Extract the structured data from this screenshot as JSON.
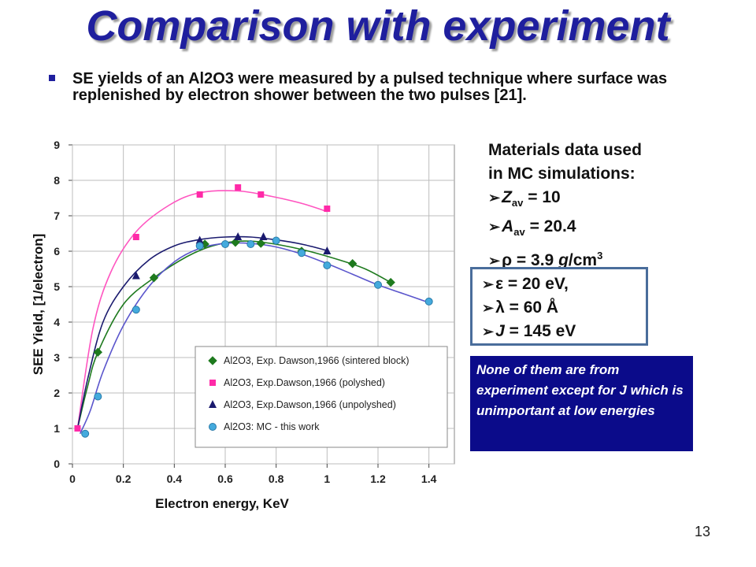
{
  "slide": {
    "title": "Comparison with experiment",
    "bullet": "SE yields of an Al2O3 were measured by a pulsed technique where surface was replenished by electron shower between the two pulses [21].",
    "page_number": "13"
  },
  "materials": {
    "header1": "Materials data used",
    "header2": "in MC simulations:",
    "z_sym": "Z",
    "z_sub": "av",
    "z_val": " = 10",
    "a_sym": "A",
    "a_sub": "av",
    "a_val": " = 20.4",
    "rho_sym": "ρ",
    "rho_val": " = 3.9 ",
    "rho_unit": "g",
    "rho_unit2": "/cm",
    "rho_exp": "3"
  },
  "params": {
    "eps_sym": "ε",
    "eps_val": " = 20 eV,",
    "lam_sym": "λ",
    "lam_val": " = 60 Å",
    "j_sym": "J",
    "j_val": " = 145 eV"
  },
  "note": "None of them are from experiment except for J which is unimportant at low energies",
  "colors": {
    "title": "#1f1f9e",
    "note_bg": "#0b0b8a",
    "box_border": "#4a6d9b",
    "sintered": "#1e7a1e",
    "polyshed": "#ff2aa8",
    "unpolyshed": "#1a1a6e",
    "mc": "#44aadd"
  },
  "chart_data": {
    "type": "scatter",
    "xlabel": "Electron energy, KeV",
    "ylabel": "SEE Yield, [1/electron]",
    "xlim": [
      0,
      1.5
    ],
    "ylim": [
      0,
      9
    ],
    "xticks": [
      "0",
      "0.2",
      "0.4",
      "0.6",
      "0.8",
      "1",
      "1.2",
      "1.4"
    ],
    "yticks": [
      "0",
      "1",
      "2",
      "3",
      "4",
      "5",
      "6",
      "7",
      "8",
      "9"
    ],
    "grid": true,
    "legend_position": "bottom-right",
    "series": [
      {
        "name": "Al2O3, Exp. Dawson,1966 (sintered block)",
        "marker": "diamond",
        "color": "#1e7a1e",
        "points": [
          [
            0.1,
            3.15
          ],
          [
            0.32,
            5.25
          ],
          [
            0.52,
            6.2
          ],
          [
            0.64,
            6.25
          ],
          [
            0.74,
            6.22
          ],
          [
            0.9,
            6.0
          ],
          [
            1.1,
            5.65
          ],
          [
            1.25,
            5.12
          ]
        ],
        "curve": [
          [
            0.02,
            1.0
          ],
          [
            0.06,
            2.2
          ],
          [
            0.1,
            3.15
          ],
          [
            0.2,
            4.5
          ],
          [
            0.32,
            5.25
          ],
          [
            0.45,
            5.85
          ],
          [
            0.55,
            6.15
          ],
          [
            0.65,
            6.28
          ],
          [
            0.75,
            6.25
          ],
          [
            0.9,
            6.05
          ],
          [
            1.05,
            5.75
          ],
          [
            1.15,
            5.5
          ],
          [
            1.25,
            5.12
          ]
        ]
      },
      {
        "name": "Al2O3, Exp.Dawson,1966 (polyshed)",
        "marker": "square",
        "color": "#ff2aa8",
        "points": [
          [
            0.02,
            1.0
          ],
          [
            0.25,
            6.4
          ],
          [
            0.5,
            7.6
          ],
          [
            0.65,
            7.8
          ],
          [
            0.74,
            7.6
          ],
          [
            1.0,
            7.2
          ]
        ],
        "curve": [
          [
            0.02,
            1.0
          ],
          [
            0.08,
            3.8
          ],
          [
            0.15,
            5.4
          ],
          [
            0.25,
            6.55
          ],
          [
            0.38,
            7.3
          ],
          [
            0.5,
            7.65
          ],
          [
            0.65,
            7.7
          ],
          [
            0.78,
            7.55
          ],
          [
            0.9,
            7.35
          ],
          [
            1.0,
            7.12
          ]
        ]
      },
      {
        "name": "Al2O3, Exp.Dawson,1966 (unpolyshed)",
        "marker": "triangle",
        "color": "#1a1a6e",
        "points": [
          [
            0.25,
            5.3
          ],
          [
            0.5,
            6.3
          ],
          [
            0.65,
            6.4
          ],
          [
            0.75,
            6.4
          ],
          [
            1.0,
            6.0
          ]
        ],
        "curve": [
          [
            0.02,
            1.0
          ],
          [
            0.06,
            2.4
          ],
          [
            0.12,
            4.0
          ],
          [
            0.2,
            5.0
          ],
          [
            0.3,
            5.75
          ],
          [
            0.4,
            6.15
          ],
          [
            0.5,
            6.33
          ],
          [
            0.6,
            6.4
          ],
          [
            0.7,
            6.4
          ],
          [
            0.8,
            6.32
          ],
          [
            0.9,
            6.2
          ],
          [
            1.0,
            6.02
          ]
        ]
      },
      {
        "name": "Al2O3: MC - this work",
        "marker": "circle",
        "color": "#44aadd",
        "points": [
          [
            0.05,
            0.85
          ],
          [
            0.1,
            1.9
          ],
          [
            0.25,
            4.35
          ],
          [
            0.5,
            6.15
          ],
          [
            0.6,
            6.2
          ],
          [
            0.7,
            6.2
          ],
          [
            0.8,
            6.3
          ],
          [
            0.9,
            5.95
          ],
          [
            1.0,
            5.6
          ],
          [
            1.2,
            5.05
          ],
          [
            1.4,
            4.58
          ]
        ],
        "curve": [
          [
            0.03,
            0.85
          ],
          [
            0.07,
            1.5
          ],
          [
            0.12,
            2.6
          ],
          [
            0.2,
            3.9
          ],
          [
            0.3,
            5.0
          ],
          [
            0.4,
            5.7
          ],
          [
            0.5,
            6.08
          ],
          [
            0.6,
            6.22
          ],
          [
            0.7,
            6.22
          ],
          [
            0.8,
            6.12
          ],
          [
            0.9,
            5.92
          ],
          [
            1.0,
            5.65
          ],
          [
            1.1,
            5.35
          ],
          [
            1.2,
            5.05
          ],
          [
            1.3,
            4.8
          ],
          [
            1.4,
            4.55
          ]
        ]
      }
    ]
  }
}
